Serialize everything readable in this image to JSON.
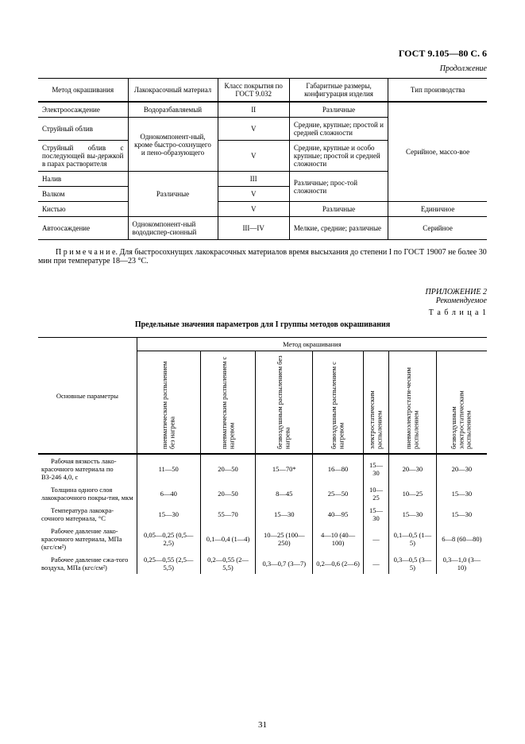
{
  "header": "ГОСТ 9.105—80 С. 6",
  "continuation": "Продолжение",
  "t1": {
    "headers": [
      "Метод окрашивания",
      "Лакокрасочный материал",
      "Класс покрытия по ГОСТ 9.032",
      "Габаритные размеры, конфигурация изделия",
      "Тип производства"
    ],
    "rows": {
      "r1": {
        "c1": "Электроосаждение",
        "c2": "Водоразбавляемый",
        "c3": "II",
        "c4": "Различные"
      },
      "r2": {
        "c1": "Струйный облив",
        "c3": "V",
        "c4": "Средние, крупные; простой и средней сложности"
      },
      "r2_mat": "Однокомпонент-ный, кроме быстро-сохнущего и пено-образующего",
      "r3": {
        "c1": "Струйный облив с последующей вы-держкой в парах растворителя",
        "c3": "V",
        "c4": "Средние, крупные и особо крупные; простой и средней сложности"
      },
      "r3_type": "Серийное, массо-вое",
      "r4": {
        "c1": "Налив",
        "c3": "III"
      },
      "r4_mat": "Различные",
      "r4_gab": "Различные; прос-той сложности",
      "r5": {
        "c1": "Валком",
        "c3": "V"
      },
      "r6": {
        "c1": "Кистью",
        "c3": "V",
        "c4": "Различные",
        "c5": "Единичное"
      },
      "r7": {
        "c1": "Автоосаждение",
        "c2": "Однокомпонент-ный вододиспер-сионный",
        "c3": "III—IV",
        "c4": "Мелкие, средние; различные",
        "c5": "Серийное"
      }
    }
  },
  "note": "П р и м е ч а н и е.  Для быстросохнущих лакокрасочных материалов время высыхания до степени I по ГОСТ 19007 не более 30 мин при температуре 18—23 °C.",
  "appendix": "ПРИЛОЖЕНИЕ 2",
  "rec": "Рекомендуемое",
  "tablenum": "Т а б л и ц а  1",
  "title2": "Предельные значения параметров для I группы методов окрашивания",
  "t2": {
    "group_header": "Метод окрашивания",
    "param_header": "Основные параметры",
    "cols": [
      "пневматическим распылением без нагрева",
      "пневматическим распылением с нагревом",
      "безвоздушным распылением без нагрева",
      "безвоздушным распылением с нагревом",
      "электростатическим распылением",
      "пневмоэлектростати-ческим распылением",
      "безвоздушным электростатическим распылением"
    ],
    "rows": [
      {
        "p": "Рабочая вязкость лако-красочного материала по ВЗ-246 4,0, с",
        "v": [
          "11—50",
          "20—50",
          "15—70*",
          "16—80",
          "15—30",
          "20—30",
          "20—30"
        ]
      },
      {
        "p": "Толщина одного слоя лакокрасочного покры-тия, мкм",
        "v": [
          "6—40",
          "20—50",
          "8—45",
          "25—50",
          "10—25",
          "10—25",
          "15—30"
        ]
      },
      {
        "p": "Температура лакокра-сочного материала, °С",
        "v": [
          "15—30",
          "55—70",
          "15—30",
          "40—95",
          "15—30",
          "15—30",
          "15—30"
        ]
      },
      {
        "p": "Рабочее давление лако-красочного материала, МПа (кгс/см²)",
        "v": [
          "0,05—0,25 (0,5—2,5)",
          "0,1—0,4 (1—4)",
          "10—25 (100—250)",
          "4—10 (40—100)",
          "—",
          "0,1—0,5 (1—5)",
          "6—8 (60—80)"
        ]
      },
      {
        "p": "Рабочее давление сжа-того воздуха, МПа (кгс/см²)",
        "v": [
          "0,25—0,55 (2,5—5,5)",
          "0,2—0,55 (2—5,5)",
          "0,3—0,7 (3—7)",
          "0,2—0,6 (2—6)",
          "—",
          "0,3—0,5 (3—5)",
          "0,3—1,0 (3—10)"
        ]
      }
    ]
  },
  "pagenum": "31",
  "style": {
    "font": "Times New Roman",
    "page_bg": "#ffffff",
    "text_color": "#000000",
    "border_color": "#000000",
    "body_fontsize": 10,
    "table_fontsize": 9,
    "t2_fontsize": 8.5
  }
}
